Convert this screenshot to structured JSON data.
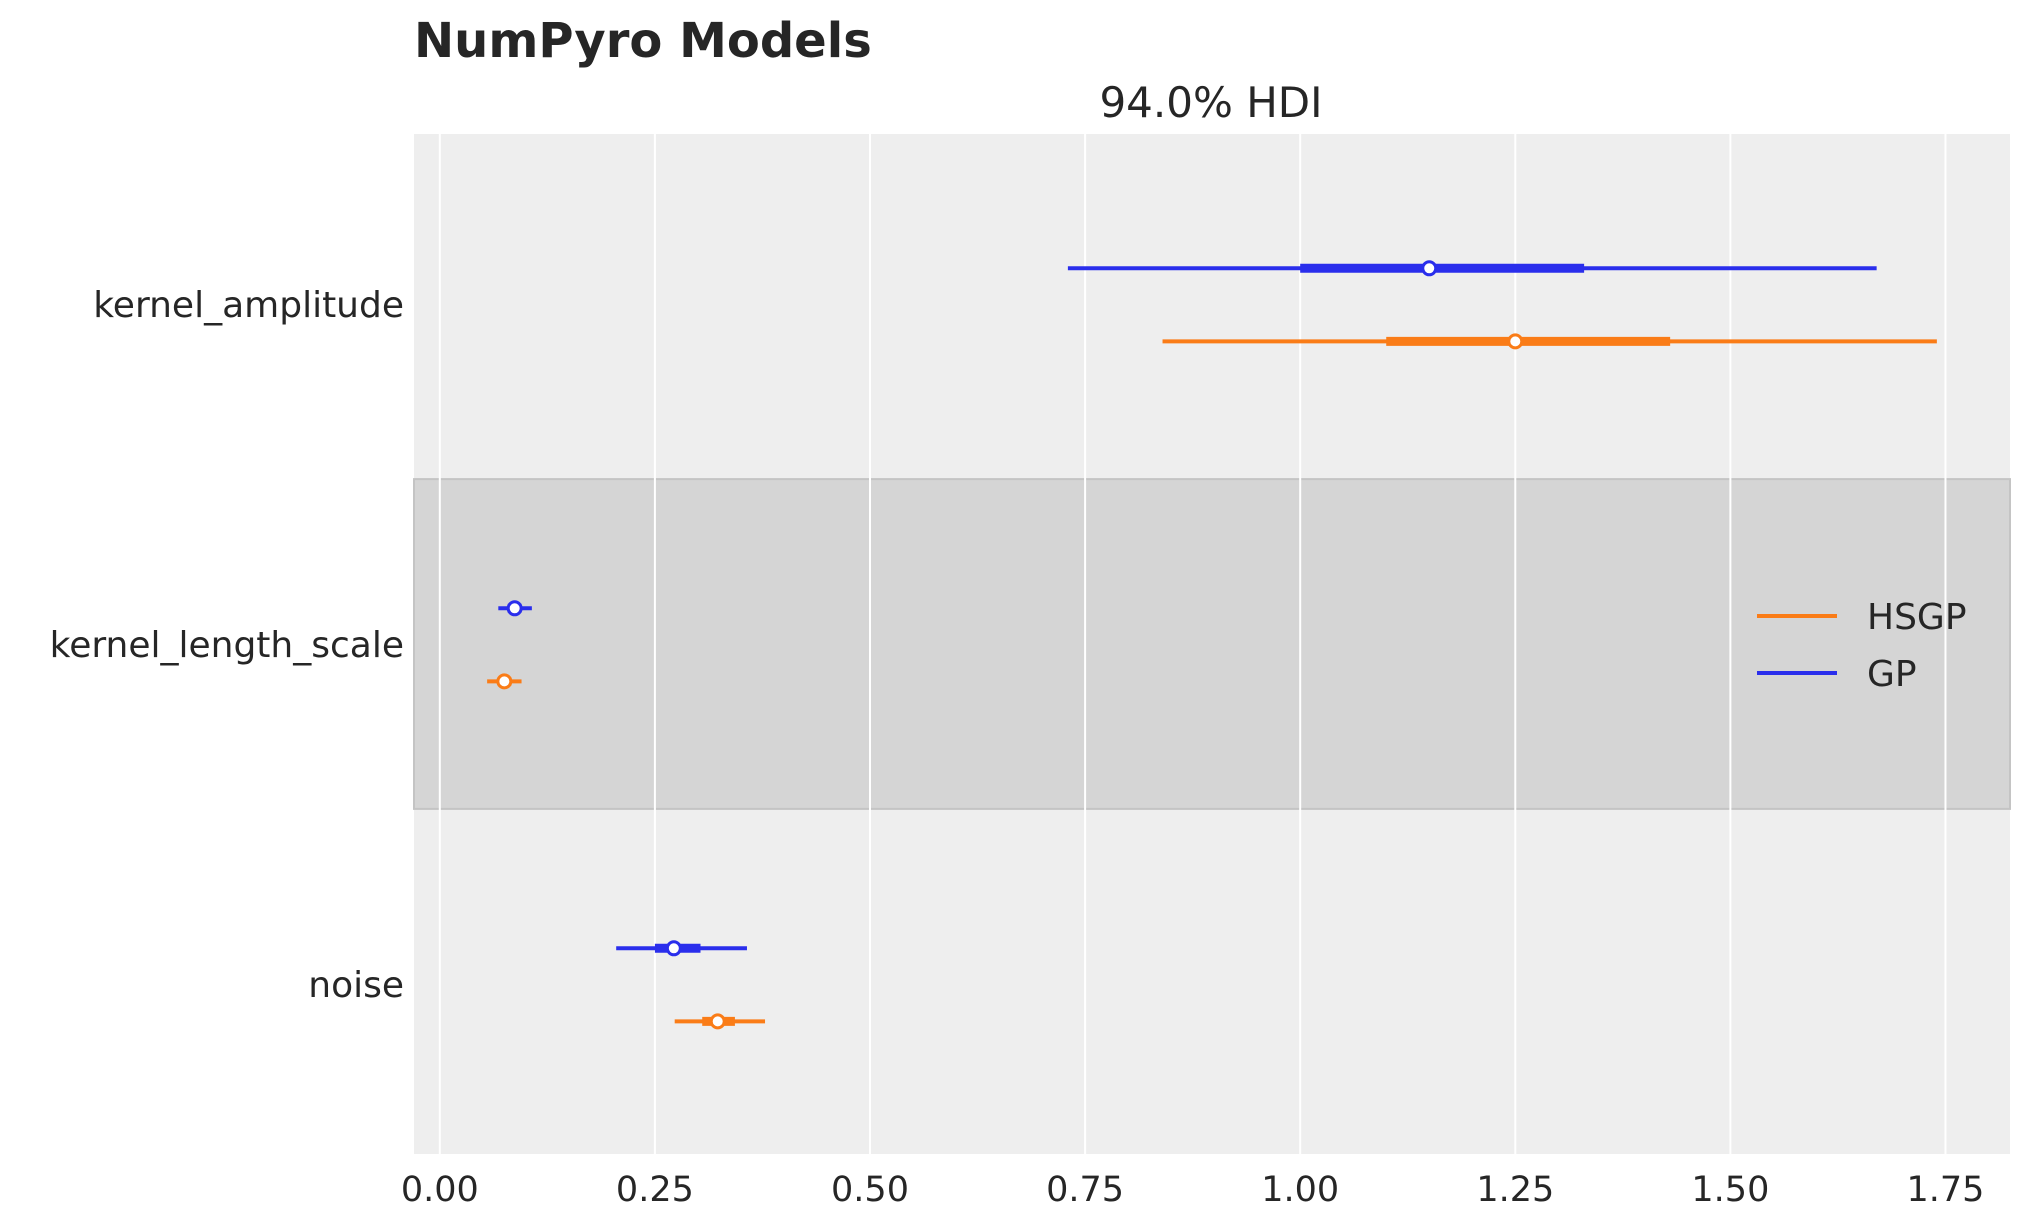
{
  "chart_data": {
    "type": "forest",
    "title": "NumPyro Models",
    "subtitle": "94.0% HDI",
    "xlim": [
      -0.03,
      1.825
    ],
    "xticks": [
      0.0,
      0.25,
      0.5,
      0.75,
      1.0,
      1.25,
      1.5,
      1.75
    ],
    "xtick_labels": [
      "0.00",
      "0.25",
      "0.50",
      "0.75",
      "1.00",
      "1.25",
      "1.50",
      "1.75"
    ],
    "grid": true,
    "legend_position": "right",
    "parameters": [
      "kernel_amplitude",
      "kernel_length_scale",
      "noise"
    ],
    "highlighted_parameter": "kernel_length_scale",
    "series": [
      {
        "name": "GP",
        "color": "#2a2eec",
        "estimates": [
          {
            "param": "kernel_amplitude",
            "point": 1.15,
            "hdi_low": 0.73,
            "hdi_high": 1.67,
            "iqr_low": 1.0,
            "iqr_high": 1.33
          },
          {
            "param": "kernel_length_scale",
            "point": 0.087,
            "hdi_low": 0.068,
            "hdi_high": 0.107,
            "iqr_low": 0.079,
            "iqr_high": 0.095
          },
          {
            "param": "noise",
            "point": 0.272,
            "hdi_low": 0.205,
            "hdi_high": 0.357,
            "iqr_low": 0.25,
            "iqr_high": 0.303
          }
        ]
      },
      {
        "name": "HSGP",
        "color": "#fa7c17",
        "estimates": [
          {
            "param": "kernel_amplitude",
            "point": 1.25,
            "hdi_low": 0.84,
            "hdi_high": 1.74,
            "iqr_low": 1.1,
            "iqr_high": 1.43
          },
          {
            "param": "kernel_length_scale",
            "point": 0.075,
            "hdi_low": 0.055,
            "hdi_high": 0.095,
            "iqr_low": 0.068,
            "iqr_high": 0.083
          },
          {
            "param": "noise",
            "point": 0.323,
            "hdi_low": 0.273,
            "hdi_high": 0.378,
            "iqr_low": 0.305,
            "iqr_high": 0.343
          }
        ]
      }
    ],
    "legend": [
      "HSGP",
      "GP"
    ]
  },
  "colors": {
    "background": "#ffffff",
    "plot_bg": "#eeeeee",
    "band_bg": "#d5d5d5",
    "grid": "#ffffff",
    "text": "#262626"
  }
}
